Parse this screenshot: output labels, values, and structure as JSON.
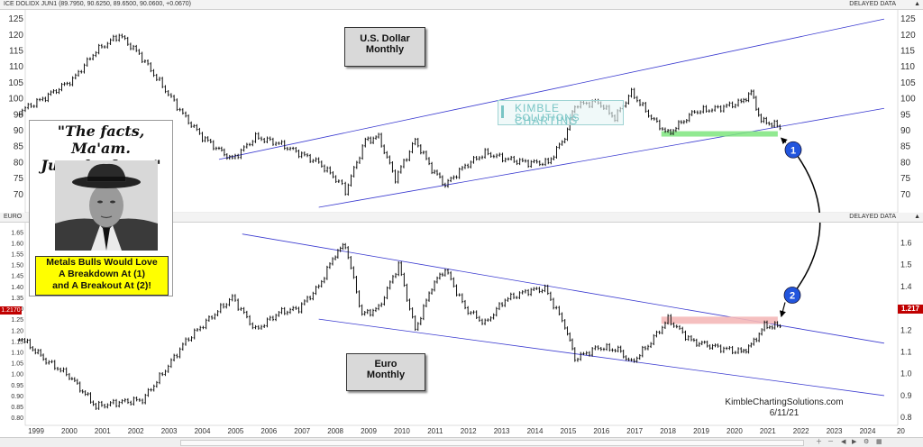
{
  "header_top": {
    "symbol": "ICE DOLIDX JUN1 (89.7950, 90.6250, 89.6500, 90.0600, +0.0670)",
    "status": "DELAYED DATA"
  },
  "header_mid": {
    "symbol": "EURO",
    "status": "DELAYED DATA"
  },
  "usd_label": {
    "line1": "U.S. Dollar",
    "line2": "Monthly"
  },
  "eur_label": {
    "line1": "Euro",
    "line2": "Monthly"
  },
  "quote": {
    "text1": "\"The facts, Ma'am.",
    "text2": "Just the facts.\"",
    "note1": "Metals Bulls Would Love",
    "note2": "A Breakdown At (1)",
    "note3": "and A Breakout At (2)!"
  },
  "watermark": {
    "line1": "KIMBLE CHARTING",
    "line2": "SOLUTIONS"
  },
  "credit": {
    "site": "KimbleChartingSolutions.com",
    "date": "6/11/21"
  },
  "markers": [
    {
      "label": "1"
    },
    {
      "label": "2"
    }
  ],
  "price_tags": {
    "eur_right": "1.217",
    "eur_left": "1.2170"
  },
  "colors": {
    "uptrend_lines": "#3a3ad0",
    "support_zone": "#7ee57e",
    "resistance_zone": "#f4b8b8",
    "marker": "#2255dd"
  },
  "chart_data": [
    {
      "type": "line",
      "title": "U.S. Dollar Monthly",
      "x_unit": "year",
      "ylim": [
        66,
        127
      ],
      "yticks": [
        70,
        75,
        80,
        85,
        90,
        95,
        100,
        105,
        110,
        115,
        120,
        125
      ],
      "series": [
        {
          "values": [
            [
              1998.5,
              96
            ],
            [
              1999.2,
              100
            ],
            [
              2000.1,
              106
            ],
            [
              2000.8,
              115
            ],
            [
              2001.5,
              120
            ],
            [
              2002.1,
              114
            ],
            [
              2002.8,
              104
            ],
            [
              2003.5,
              94
            ],
            [
              2004.0,
              88
            ],
            [
              2004.5,
              84
            ],
            [
              2004.9,
              81
            ],
            [
              2005.6,
              88
            ],
            [
              2006.3,
              86
            ],
            [
              2006.9,
              83
            ],
            [
              2007.5,
              80
            ],
            [
              2008.1,
              74
            ],
            [
              2008.3,
              71
            ],
            [
              2008.9,
              87
            ],
            [
              2009.3,
              88
            ],
            [
              2009.8,
              75
            ],
            [
              2010.4,
              87
            ],
            [
              2010.9,
              78
            ],
            [
              2011.3,
              73
            ],
            [
              2011.9,
              79
            ],
            [
              2012.5,
              83
            ],
            [
              2013.2,
              81
            ],
            [
              2013.8,
              80
            ],
            [
              2014.4,
              80
            ],
            [
              2014.9,
              88
            ],
            [
              2015.2,
              98
            ],
            [
              2015.9,
              99
            ],
            [
              2016.4,
              94
            ],
            [
              2016.9,
              102
            ],
            [
              2017.5,
              94
            ],
            [
              2018.0,
              89
            ],
            [
              2018.8,
              96
            ],
            [
              2019.5,
              97
            ],
            [
              2020.2,
              99
            ],
            [
              2020.5,
              102
            ],
            [
              2020.8,
              93
            ],
            [
              2021.2,
              92
            ],
            [
              2021.45,
              90
            ]
          ]
        }
      ],
      "trendlines": [
        {
          "from": [
            2004.5,
            81
          ],
          "to": [
            2024.5,
            125
          ]
        },
        {
          "from": [
            2007.5,
            66
          ],
          "to": [
            2024.5,
            97
          ]
        }
      ],
      "support_zone": {
        "x": [
          2017.8,
          2021.3
        ],
        "y": 89
      }
    },
    {
      "type": "line",
      "title": "Euro Monthly",
      "x_unit": "year",
      "ylim": [
        0.78,
        1.68
      ],
      "yticks_left": [
        0.8,
        0.85,
        0.9,
        0.95,
        1.0,
        1.05,
        1.1,
        1.15,
        1.2,
        1.25,
        1.3,
        1.35,
        1.4,
        1.45,
        1.5,
        1.55,
        1.6,
        1.65
      ],
      "yticks_right": [
        0.8,
        0.9,
        1.0,
        1.1,
        1.2,
        1.3,
        1.4,
        1.5,
        1.6
      ],
      "series": [
        {
          "values": [
            [
              1998.5,
              1.17
            ],
            [
              1999.3,
              1.06
            ],
            [
              2000.0,
              0.99
            ],
            [
              2000.8,
              0.85
            ],
            [
              2001.5,
              0.87
            ],
            [
              2002.2,
              0.88
            ],
            [
              2002.8,
              1.0
            ],
            [
              2003.5,
              1.15
            ],
            [
              2004.2,
              1.25
            ],
            [
              2004.9,
              1.35
            ],
            [
              2005.6,
              1.2
            ],
            [
              2006.3,
              1.28
            ],
            [
              2006.9,
              1.3
            ],
            [
              2007.5,
              1.4
            ],
            [
              2008.0,
              1.55
            ],
            [
              2008.3,
              1.59
            ],
            [
              2008.8,
              1.27
            ],
            [
              2009.3,
              1.3
            ],
            [
              2009.9,
              1.5
            ],
            [
              2010.4,
              1.2
            ],
            [
              2010.9,
              1.4
            ],
            [
              2011.3,
              1.48
            ],
            [
              2011.9,
              1.3
            ],
            [
              2012.5,
              1.23
            ],
            [
              2013.1,
              1.34
            ],
            [
              2013.8,
              1.38
            ],
            [
              2014.3,
              1.39
            ],
            [
              2014.9,
              1.22
            ],
            [
              2015.2,
              1.07
            ],
            [
              2015.9,
              1.12
            ],
            [
              2016.5,
              1.11
            ],
            [
              2016.9,
              1.05
            ],
            [
              2017.4,
              1.13
            ],
            [
              2018.0,
              1.25
            ],
            [
              2018.7,
              1.15
            ],
            [
              2019.5,
              1.12
            ],
            [
              2020.2,
              1.1
            ],
            [
              2020.5,
              1.13
            ],
            [
              2020.9,
              1.22
            ],
            [
              2021.45,
              1.217
            ]
          ]
        }
      ],
      "trendlines": [
        {
          "from": [
            2005.2,
            1.64
          ],
          "to": [
            2024.5,
            1.14
          ]
        },
        {
          "from": [
            2007.5,
            1.25
          ],
          "to": [
            2024.5,
            0.9
          ]
        }
      ],
      "resistance_zone": {
        "x": [
          2017.8,
          2021.3
        ],
        "y": 1.245
      }
    }
  ],
  "xaxis": {
    "labels": [
      "1999",
      "2000",
      "2001",
      "2002",
      "2003",
      "2004",
      "2005",
      "2006",
      "2007",
      "2008",
      "2009",
      "2010",
      "2011",
      "2012",
      "2013",
      "2014",
      "2015",
      "2016",
      "2017",
      "2018",
      "2019",
      "2020",
      "2021",
      "2022",
      "2023",
      "2024",
      "20"
    ]
  }
}
